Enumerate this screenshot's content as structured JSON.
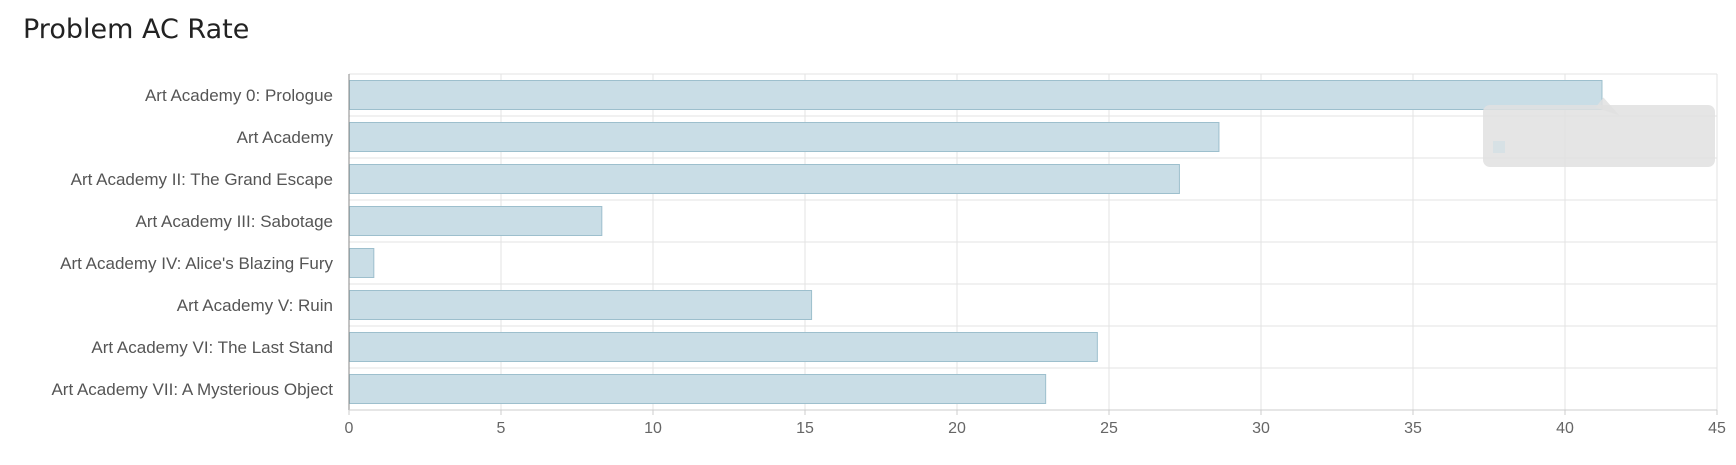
{
  "page": {
    "title": "Problem AC Rate"
  },
  "chart_data": {
    "type": "bar",
    "orientation": "horizontal",
    "title": "Problem AC Rate",
    "xlabel": "",
    "ylabel": "",
    "categories": [
      "Art Academy 0: Prologue",
      "Art Academy",
      "Art Academy II: The Grand Escape",
      "Art Academy III: Sabotage",
      "Art Academy IV: Alice's Blazing Fury",
      "Art Academy V: Ruin",
      "Art Academy VI: The Last Stand",
      "Art Academy VII: A Mysterious Object"
    ],
    "values": [
      41.2,
      28.6,
      27.3,
      8.3,
      0.8,
      15.2,
      24.6,
      22.9
    ],
    "xlim": [
      0,
      45
    ],
    "xticks": [
      0,
      5,
      10,
      15,
      20,
      25,
      30,
      35,
      40,
      45
    ],
    "grid": true,
    "legend": "none",
    "colors": {
      "bar_fill": "#c9dde6",
      "bar_stroke": "#9dbfcd",
      "grid": "#e3e3e3",
      "axis": "#888888",
      "tooltip_bg": "#e1e1e1"
    }
  }
}
